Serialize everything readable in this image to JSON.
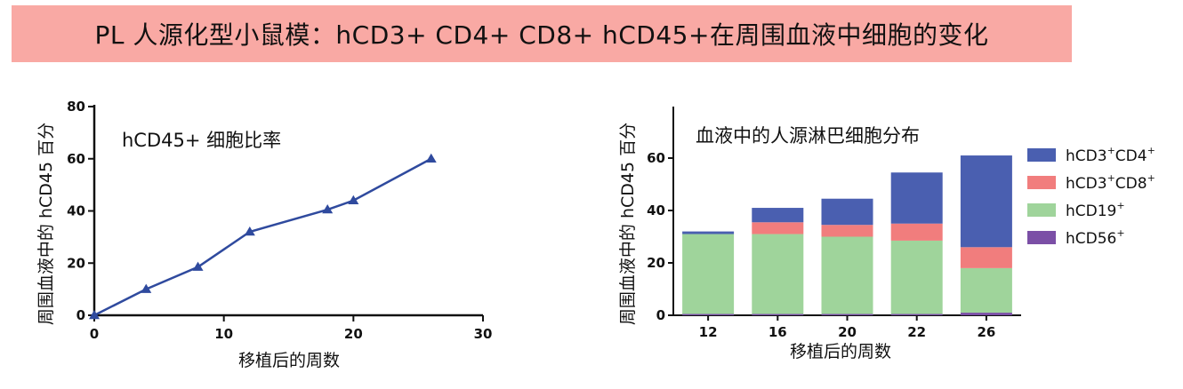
{
  "header": {
    "title": "PL 人源化型小鼠模：hCD3+ CD4+ CD8+ hCD45+在周围血液中细胞的变化"
  },
  "chart_data": [
    {
      "type": "line",
      "title": "hCD45+ 细胞比率",
      "xlabel": "移植后的周数",
      "ylabel": "周围血液中的 hCD45 百分",
      "x": [
        0,
        4,
        8,
        12,
        18,
        20,
        26
      ],
      "series": [
        {
          "values": [
            0,
            10,
            18.5,
            32,
            40.5,
            44,
            60
          ]
        }
      ],
      "xlim": [
        0,
        30
      ],
      "ylim": [
        0,
        80
      ],
      "xticks": [
        0,
        10,
        20,
        30
      ],
      "yticks": [
        0,
        20,
        40,
        60,
        80
      ],
      "grid": false,
      "color": "#2f4a9e"
    },
    {
      "type": "bar",
      "stacked": true,
      "title": "血液中的人源淋巴细胞分布",
      "xlabel": "移植后的周数",
      "ylabel": "周围血液中的 hCD45 百分",
      "categories": [
        "12",
        "16",
        "20",
        "22",
        "26"
      ],
      "series": [
        {
          "name": "hCD56",
          "label_main": "hCD56",
          "label_sup": "+",
          "color": "#7b4fa6",
          "values": [
            0.5,
            0.5,
            0.5,
            0.5,
            1
          ]
        },
        {
          "name": "hCD19",
          "label_main": "hCD19",
          "label_sup": "+",
          "color": "#9fd49b",
          "values": [
            30.5,
            30.5,
            29.5,
            28,
            17
          ]
        },
        {
          "name": "hCD3+CD8+",
          "label_main": "hCD3",
          "label_sup": "+",
          "label_main2": "CD8",
          "label_sup2": "+",
          "color": "#f17d7d",
          "values": [
            0,
            4.5,
            4.5,
            6.5,
            8
          ]
        },
        {
          "name": "hCD3+CD4+",
          "label_main": "hCD3",
          "label_sup": "+",
          "label_main2": "CD4",
          "label_sup2": "+",
          "color": "#4a5fb0",
          "values": [
            1,
            5.5,
            10,
            19.5,
            35
          ]
        }
      ],
      "ylim": [
        0,
        60
      ],
      "yticks": [
        0,
        20,
        40,
        60
      ],
      "legend": "right",
      "grid": false
    }
  ]
}
